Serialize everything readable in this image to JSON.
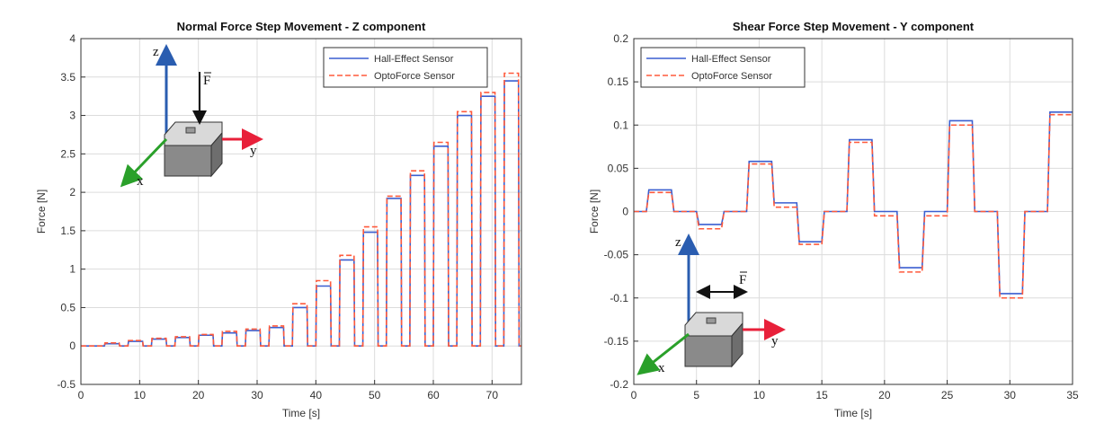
{
  "chart_data": [
    {
      "type": "line",
      "title": "Normal Force Step Movement - Z component",
      "xlabel": "Time [s]",
      "ylabel": "Force [N]",
      "x": [
        0,
        4,
        4.1,
        6.5,
        6.6,
        8,
        8.1,
        10.5,
        10.6,
        12,
        12.1,
        14.5,
        14.6,
        16,
        16.1,
        18.5,
        18.6,
        20,
        20.1,
        22.5,
        22.6,
        24,
        24.1,
        26.5,
        26.6,
        28,
        28.1,
        30.5,
        30.6,
        32,
        32.1,
        34.5,
        34.6,
        36,
        36.1,
        38.5,
        38.6,
        40,
        40.1,
        42.5,
        42.6,
        44,
        44.1,
        46.5,
        46.6,
        48,
        48.1,
        50.5,
        50.6,
        52,
        52.1,
        54.5,
        54.6,
        56,
        56.1,
        58.5,
        58.6,
        60,
        60.1,
        62.5,
        62.6,
        64,
        64.1,
        66.5,
        66.6,
        68,
        68.1,
        70.5,
        70.6,
        72,
        72.1,
        74.5,
        74.6,
        75
      ],
      "series": [
        {
          "name": "Hall-Effect Sensor",
          "color": "#3a5fd0",
          "dashed": false,
          "values": [
            0,
            0,
            0.03,
            0.03,
            0,
            0,
            0.06,
            0.06,
            0,
            0,
            0.09,
            0.09,
            0,
            0,
            0.11,
            0.11,
            0,
            0,
            0.14,
            0.14,
            0,
            0,
            0.17,
            0.17,
            0,
            0,
            0.2,
            0.2,
            0,
            0,
            0.24,
            0.24,
            0,
            0,
            0.5,
            0.5,
            0,
            0,
            0.78,
            0.78,
            0,
            0,
            1.12,
            1.12,
            0,
            0,
            1.48,
            1.48,
            0,
            0,
            1.92,
            1.92,
            0,
            0,
            2.22,
            2.22,
            0,
            0,
            2.6,
            2.6,
            0,
            0,
            3.0,
            3.0,
            0,
            0,
            3.25,
            3.25,
            0,
            0,
            3.45,
            3.45,
            0,
            0
          ]
        },
        {
          "name": "OptoForce Sensor",
          "color": "#ff5a3c",
          "dashed": true,
          "values": [
            0,
            0,
            0.04,
            0.04,
            0,
            0,
            0.07,
            0.07,
            0,
            0,
            0.1,
            0.1,
            0,
            0,
            0.12,
            0.12,
            0,
            0,
            0.15,
            0.15,
            0,
            0,
            0.19,
            0.19,
            0,
            0,
            0.22,
            0.22,
            0,
            0,
            0.26,
            0.26,
            0,
            0,
            0.55,
            0.55,
            0,
            0,
            0.85,
            0.85,
            0,
            0,
            1.18,
            1.18,
            0,
            0,
            1.55,
            1.55,
            0,
            0,
            1.95,
            1.95,
            0,
            0,
            2.28,
            2.28,
            0,
            0,
            2.65,
            2.65,
            0,
            0,
            3.05,
            3.05,
            0,
            0,
            3.3,
            3.3,
            0,
            0,
            3.55,
            3.55,
            0,
            0
          ]
        }
      ],
      "xlim": [
        0,
        75
      ],
      "xticks": [
        0,
        10,
        20,
        30,
        40,
        50,
        60,
        70
      ],
      "ylim": [
        -0.5,
        4
      ],
      "yticks": [
        -0.5,
        0,
        0.5,
        1,
        1.5,
        2,
        2.5,
        3,
        3.5,
        4
      ],
      "grid": true,
      "legend": "upper right",
      "annotations": [
        "z",
        "F",
        "y",
        "x"
      ]
    },
    {
      "type": "line",
      "title": "Shear Force Step Movement - Y component",
      "xlabel": "Time [s]",
      "ylabel": "Force [N]",
      "x": [
        0,
        1,
        1.2,
        3,
        3.2,
        5,
        5.2,
        7,
        7.2,
        9,
        9.2,
        11,
        11.2,
        13,
        13.2,
        15,
        15.2,
        17,
        17.2,
        19,
        19.2,
        21,
        21.2,
        23,
        23.2,
        25,
        25.2,
        27,
        27.2,
        29,
        29.2,
        31,
        31.2,
        33,
        33.2,
        35
      ],
      "series": [
        {
          "name": "Hall-Effect Sensor",
          "color": "#3a5fd0",
          "dashed": false,
          "values": [
            0,
            0,
            0.025,
            0.025,
            0,
            0,
            -0.015,
            -0.015,
            0,
            0,
            0.058,
            0.058,
            0.01,
            0.01,
            -0.035,
            -0.035,
            0,
            0,
            0.083,
            0.083,
            0,
            0,
            -0.065,
            -0.065,
            0,
            0,
            0.105,
            0.105,
            0,
            0,
            -0.095,
            -0.095,
            0,
            0,
            0.115,
            0.115
          ]
        },
        {
          "name": "OptoForce Sensor",
          "color": "#ff5a3c",
          "dashed": true,
          "values": [
            0,
            0,
            0.022,
            0.022,
            0,
            0,
            -0.02,
            -0.02,
            0,
            0,
            0.055,
            0.055,
            0.005,
            0.005,
            -0.038,
            -0.038,
            0,
            0,
            0.08,
            0.08,
            -0.005,
            -0.005,
            -0.07,
            -0.07,
            -0.005,
            -0.005,
            0.1,
            0.1,
            0,
            0,
            -0.1,
            -0.1,
            0,
            0,
            0.112,
            0.112
          ]
        }
      ],
      "xlim": [
        0,
        35
      ],
      "xticks": [
        0,
        5,
        10,
        15,
        20,
        25,
        30,
        35
      ],
      "ylim": [
        -0.2,
        0.2
      ],
      "yticks": [
        -0.2,
        -0.15,
        -0.1,
        -0.05,
        0,
        0.05,
        0.1,
        0.15,
        0.2
      ],
      "grid": true,
      "legend": "upper left",
      "annotations": [
        "z",
        "F",
        "y",
        "x"
      ]
    }
  ]
}
